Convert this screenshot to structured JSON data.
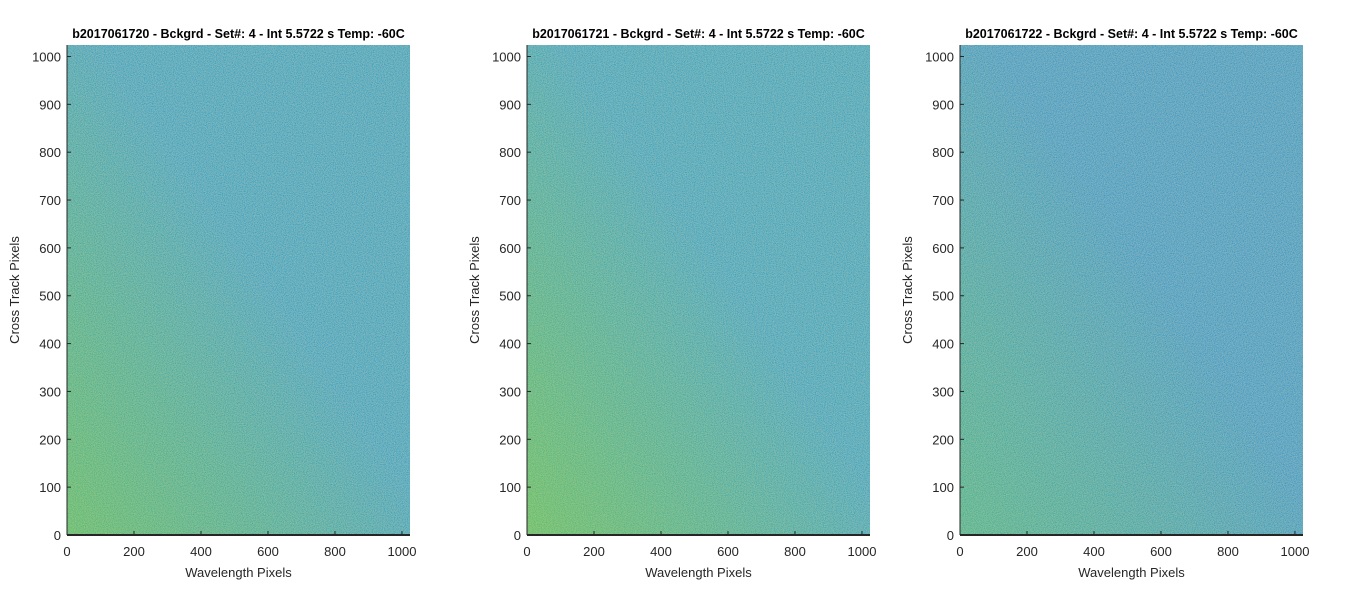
{
  "chart_data": [
    {
      "type": "heatmap",
      "title": "b2017061720 - Bckgrd - Set#: 4 - Int 5.5722 s Temp: -60C",
      "xlabel": "Wavelength Pixels",
      "ylabel": "Cross Track Pixels",
      "xlim": [
        0,
        1024
      ],
      "ylim": [
        0,
        1024
      ],
      "xticks": [
        0,
        200,
        400,
        600,
        800,
        1000
      ],
      "yticks": [
        0,
        100,
        200,
        300,
        400,
        500,
        600,
        700,
        800,
        900,
        1000
      ],
      "colormap": "parula",
      "color_left": "#4db87a",
      "color_right": "#1fa0c8",
      "grid": false,
      "legend": "none"
    },
    {
      "type": "heatmap",
      "title": "b2017061721 - Bckgrd - Set#: 4 - Int 5.5722 s Temp: -60C",
      "xlabel": "Wavelength Pixels",
      "ylabel": "Cross Track Pixels",
      "xlim": [
        0,
        1024
      ],
      "ylim": [
        0,
        1024
      ],
      "xticks": [
        0,
        200,
        400,
        600,
        800,
        1000
      ],
      "yticks": [
        0,
        100,
        200,
        300,
        400,
        500,
        600,
        700,
        800,
        900,
        1000
      ],
      "colormap": "parula",
      "color_left": "#55bb74",
      "color_right": "#1fa2c6",
      "grid": false,
      "legend": "none"
    },
    {
      "type": "heatmap",
      "title": "b2017061722 - Bckgrd - Set#: 4 - Int 5.5722 s Temp: -60C",
      "xlabel": "Wavelength Pixels",
      "ylabel": "Cross Track Pixels",
      "xlim": [
        0,
        1024
      ],
      "ylim": [
        0,
        1024
      ],
      "xticks": [
        0,
        200,
        400,
        600,
        800,
        1000
      ],
      "yticks": [
        0,
        100,
        200,
        300,
        400,
        500,
        600,
        700,
        800,
        900,
        1000
      ],
      "colormap": "parula",
      "color_left": "#34b09a",
      "color_right": "#1a98cc",
      "grid": false,
      "legend": "none"
    }
  ]
}
